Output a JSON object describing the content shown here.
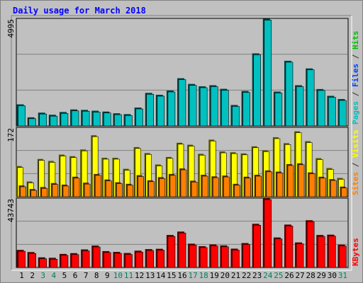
{
  "title": "Daily usage for March 2018",
  "chart_data": [
    {
      "type": "bar",
      "panel": "top",
      "y_max_label": "4995",
      "ylim": [
        0,
        4995
      ],
      "right_labels": [
        {
          "text": "Pages",
          "color": "#00c0c0"
        },
        {
          "text": " / ",
          "color": "#303030"
        },
        {
          "text": "Files",
          "color": "#0040ff"
        },
        {
          "text": " / ",
          "color": "#303030"
        },
        {
          "text": "Hits",
          "color": "#00c000"
        }
      ],
      "series": [
        {
          "color": "#00c0c0",
          "values": [
            950,
            340,
            560,
            460,
            590,
            710,
            690,
            650,
            610,
            530,
            490,
            800,
            1490,
            1400,
            1600,
            2180,
            1910,
            1800,
            1850,
            1680,
            920,
            1580,
            3350,
            4980,
            1550,
            3000,
            1850,
            2640,
            1670,
            1350,
            1200
          ]
        }
      ]
    },
    {
      "type": "bar",
      "panel": "middle",
      "y_max_label": "172",
      "ylim": [
        0,
        172
      ],
      "right_labels": [
        {
          "text": "Sites",
          "color": "#ff8000"
        },
        {
          "text": " / ",
          "color": "#303030"
        },
        {
          "text": "Visits",
          "color": "#ffff00"
        }
      ],
      "series": [
        {
          "name": "Visits",
          "color": "#ffff00",
          "values": [
            74,
            35,
            92,
            87,
            103,
            99,
            116,
            152,
            95,
            95,
            67,
            122,
            107,
            78,
            97,
            133,
            128,
            105,
            141,
            111,
            109,
            106,
            124,
            114,
            147,
            132,
            162,
            137,
            94,
            69,
            44
          ]
        },
        {
          "name": "Sites",
          "color": "#ff8000",
          "values": [
            25,
            16,
            21,
            31,
            27,
            47,
            32,
            54,
            40,
            33,
            29,
            51,
            38,
            46,
            54,
            68,
            37,
            52,
            48,
            50,
            29,
            47,
            52,
            63,
            60,
            79,
            81,
            58,
            47,
            41,
            22
          ]
        }
      ]
    },
    {
      "type": "bar",
      "panel": "bottom",
      "y_max_label": "43743",
      "ylim": [
        0,
        43743
      ],
      "right_labels": [
        {
          "text": "KBytes",
          "color": "#ff0000"
        }
      ],
      "series": [
        {
          "color": "#ff0000",
          "values": [
            10400,
            9000,
            5600,
            5300,
            7800,
            8300,
            10700,
            13200,
            9600,
            9100,
            8400,
            9900,
            10900,
            11100,
            20000,
            22200,
            14400,
            12800,
            13900,
            13300,
            11200,
            14800,
            27200,
            43700,
            18400,
            26700,
            15200,
            29500,
            20000,
            20200,
            13800
          ]
        }
      ]
    }
  ],
  "x_labels": [
    {
      "text": "1",
      "color": "#000000"
    },
    {
      "text": "2",
      "color": "#000000"
    },
    {
      "text": "3",
      "color": "#00805e"
    },
    {
      "text": "4",
      "color": "#00805e"
    },
    {
      "text": "5",
      "color": "#000000"
    },
    {
      "text": "6",
      "color": "#000000"
    },
    {
      "text": "7",
      "color": "#000000"
    },
    {
      "text": "8",
      "color": "#000000"
    },
    {
      "text": "9",
      "color": "#000000"
    },
    {
      "text": "10",
      "color": "#00805e"
    },
    {
      "text": "11",
      "color": "#00805e"
    },
    {
      "text": "12",
      "color": "#000000"
    },
    {
      "text": "13",
      "color": "#000000"
    },
    {
      "text": "14",
      "color": "#000000"
    },
    {
      "text": "15",
      "color": "#000000"
    },
    {
      "text": "16",
      "color": "#000000"
    },
    {
      "text": "17",
      "color": "#00805e"
    },
    {
      "text": "18",
      "color": "#00805e"
    },
    {
      "text": "19",
      "color": "#000000"
    },
    {
      "text": "20",
      "color": "#000000"
    },
    {
      "text": "21",
      "color": "#000000"
    },
    {
      "text": "22",
      "color": "#000000"
    },
    {
      "text": "23",
      "color": "#000000"
    },
    {
      "text": "24",
      "color": "#00805e"
    },
    {
      "text": "25",
      "color": "#00805e"
    },
    {
      "text": "26",
      "color": "#000000"
    },
    {
      "text": "27",
      "color": "#000000"
    },
    {
      "text": "28",
      "color": "#000000"
    },
    {
      "text": "29",
      "color": "#000000"
    },
    {
      "text": "30",
      "color": "#000000"
    },
    {
      "text": "31",
      "color": "#00805e"
    }
  ]
}
